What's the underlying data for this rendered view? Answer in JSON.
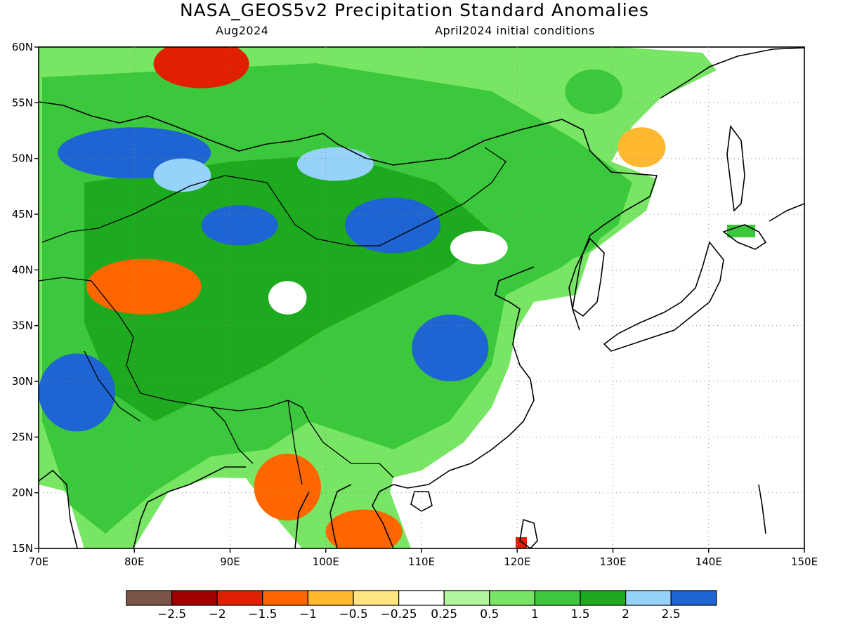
{
  "title": "NASA_GEOS5v2 Precipitation Standard Anomalies",
  "subtitle_left": "Aug2024",
  "subtitle_right": "April2024 initial conditions",
  "map": {
    "lon_range": [
      70,
      150
    ],
    "lat_range": [
      15,
      60
    ],
    "lon_ticks": [
      {
        "value": 70,
        "label": "70E"
      },
      {
        "value": 80,
        "label": "80E"
      },
      {
        "value": 90,
        "label": "90E"
      },
      {
        "value": 100,
        "label": "100E"
      },
      {
        "value": 110,
        "label": "110E"
      },
      {
        "value": 120,
        "label": "120E"
      },
      {
        "value": 130,
        "label": "130E"
      },
      {
        "value": 140,
        "label": "140E"
      },
      {
        "value": 150,
        "label": "150E"
      }
    ],
    "lat_ticks": [
      {
        "value": 60,
        "label": "60N"
      },
      {
        "value": 55,
        "label": "55N"
      },
      {
        "value": 50,
        "label": "50N"
      },
      {
        "value": 45,
        "label": "45N"
      },
      {
        "value": 40,
        "label": "40N"
      },
      {
        "value": 35,
        "label": "35N"
      },
      {
        "value": 30,
        "label": "30N"
      },
      {
        "value": 25,
        "label": "25N"
      },
      {
        "value": 20,
        "label": "20N"
      },
      {
        "value": 15,
        "label": "15N"
      }
    ],
    "gridlines": "dotted"
  },
  "colorbar": {
    "colors": [
      "#7b5547",
      "#a00000",
      "#e02000",
      "#ff6600",
      "#ffb830",
      "#ffe680",
      "#ffffff",
      "#b4f5a0",
      "#78e664",
      "#3cc83c",
      "#1eaa1e",
      "#96d2fa",
      "#1e64d2"
    ],
    "labels": [
      "−2.5",
      "−2",
      "−1.5",
      "−1",
      "−0.5",
      "−0.25",
      "0.25",
      "0.5",
      "1",
      "1.5",
      "2",
      "2.5"
    ]
  },
  "anomaly_regions": [
    {
      "lon": 87,
      "lat": 58.5,
      "rx": 5,
      "ry": 2.2,
      "level": "-1.5"
    },
    {
      "lon": 81,
      "lat": 38.5,
      "rx": 6,
      "ry": 2.5,
      "level": "-1"
    },
    {
      "lon": 96,
      "lat": 20.5,
      "rx": 3.5,
      "ry": 3,
      "level": "-1"
    },
    {
      "lon": 104,
      "lat": 16.5,
      "rx": 4,
      "ry": 2,
      "level": "-1"
    },
    {
      "lon": 133,
      "lat": 51,
      "rx": 2.5,
      "ry": 1.8,
      "level": "-0.5"
    },
    {
      "lon": 96,
      "lat": 37.5,
      "rx": 2,
      "ry": 1.5,
      "level": "0.25"
    },
    {
      "lon": 116,
      "lat": 42,
      "rx": 3,
      "ry": 1.5,
      "level": "0.25"
    },
    {
      "lon": 80,
      "lat": 50.5,
      "rx": 8,
      "ry": 2.3,
      "level": "2.5"
    },
    {
      "lon": 91,
      "lat": 44,
      "rx": 4,
      "ry": 1.8,
      "level": "2.5"
    },
    {
      "lon": 107,
      "lat": 44,
      "rx": 5,
      "ry": 2.5,
      "level": "2.5"
    },
    {
      "lon": 113,
      "lat": 33,
      "rx": 4,
      "ry": 3,
      "level": "2.5"
    },
    {
      "lon": 74,
      "lat": 29,
      "rx": 4,
      "ry": 3.5,
      "level": "2.5"
    },
    {
      "lon": 85,
      "lat": 48.5,
      "rx": 3,
      "ry": 1.5,
      "level": "2"
    },
    {
      "lon": 101,
      "lat": 49.5,
      "rx": 4,
      "ry": 1.5,
      "level": "2"
    },
    {
      "lon": 125,
      "lat": 44,
      "rx": 4,
      "ry": 3,
      "level": "1.5"
    },
    {
      "lon": 128,
      "lat": 56,
      "rx": 3,
      "ry": 2,
      "level": "1.5"
    }
  ]
}
